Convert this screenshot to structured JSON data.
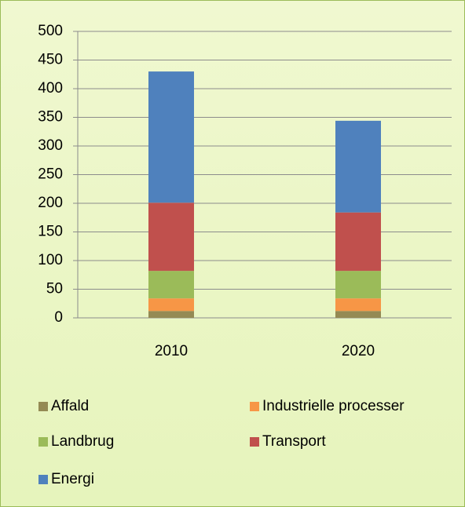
{
  "chart_data": {
    "type": "stacked_bar",
    "categories": [
      "2010",
      "2020"
    ],
    "series": [
      {
        "name": "Affald",
        "color": "#948a54",
        "values": [
          12,
          12
        ]
      },
      {
        "name": "Industrielle processer",
        "color": "#f79646",
        "values": [
          22,
          22
        ]
      },
      {
        "name": "Landbrug",
        "color": "#9bbb59",
        "values": [
          48,
          48
        ]
      },
      {
        "name": "Transport",
        "color": "#c0504d",
        "values": [
          119,
          102
        ]
      },
      {
        "name": "Energi",
        "color": "#4f81bd",
        "values": [
          229,
          160
        ]
      }
    ],
    "ylim": [
      0,
      500
    ],
    "yticks": [
      0,
      50,
      100,
      150,
      200,
      250,
      300,
      350,
      400,
      450,
      500
    ],
    "grid": true
  }
}
